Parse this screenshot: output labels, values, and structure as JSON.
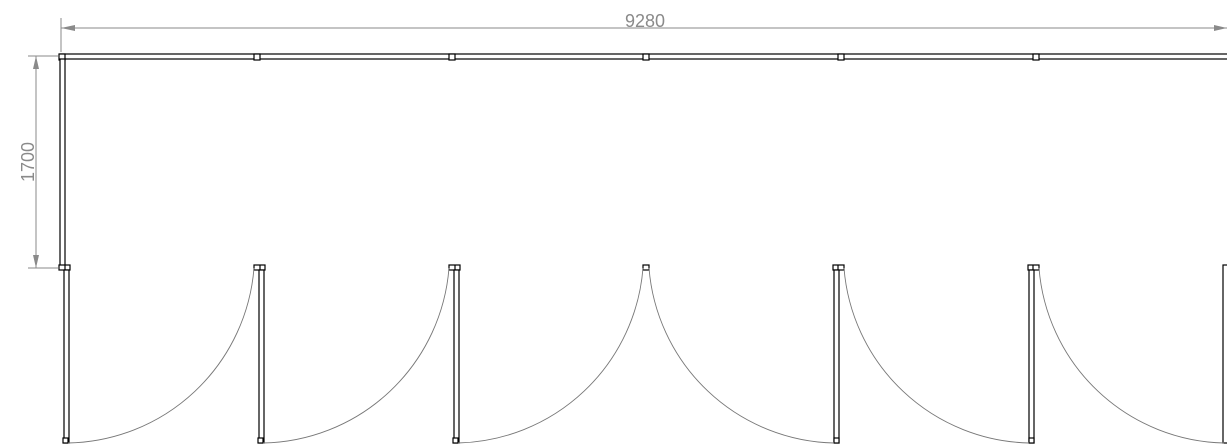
{
  "dimensions": {
    "width_label": "9280",
    "height_label": "1700"
  },
  "stalls": {
    "count": 6
  },
  "colors": {
    "lines": "#000000",
    "dimension": "#8a8a8a",
    "door_arc": "#777777"
  }
}
